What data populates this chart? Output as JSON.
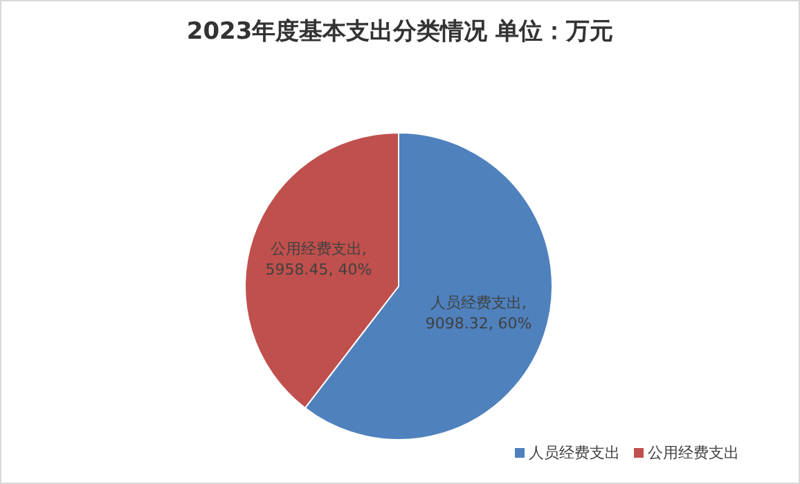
{
  "chart_data": {
    "type": "pie",
    "title": "2023年度基本支出分类情况   单位：万元",
    "categories": [
      "人员经费支出",
      "公用经费支出"
    ],
    "values": [
      9098.32,
      5958.45
    ],
    "colors": [
      "#4f81bd",
      "#c0504d"
    ],
    "value_labels": [
      "人员经费支出,\n9098.32, 60%",
      "公用经费支出,\n5958.45, 40%"
    ],
    "legend": "bottom right"
  }
}
